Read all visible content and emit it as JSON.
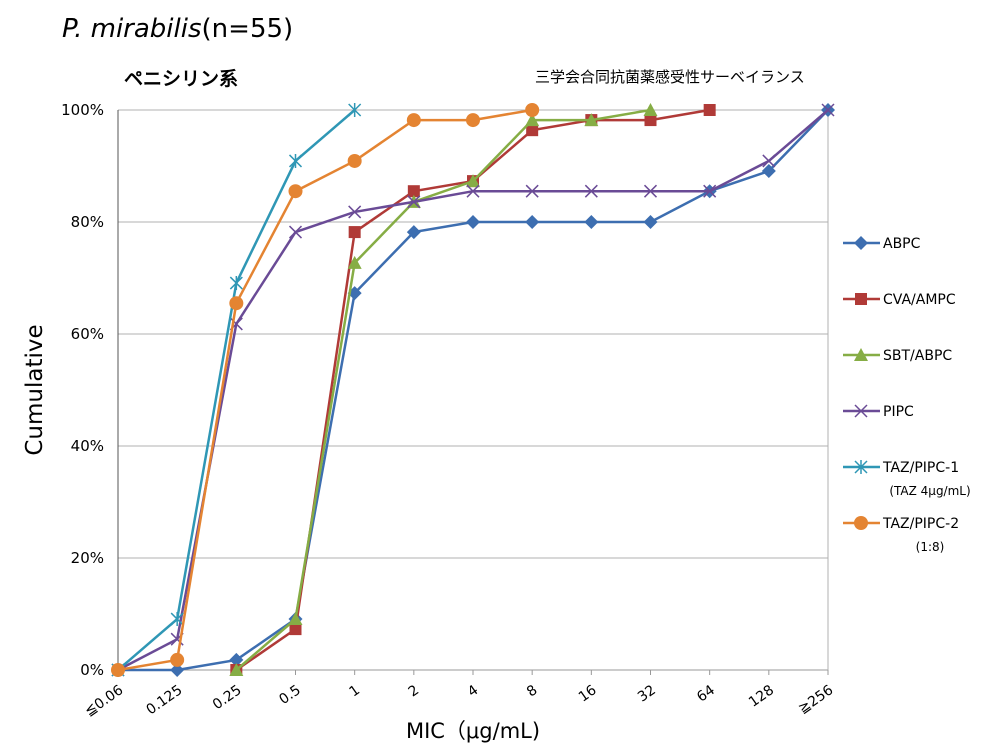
{
  "header": {
    "organism": "P. mirabilis",
    "n_label": "(n=55)",
    "subtitle": "ペニシリン系",
    "source": "三学会合同抗菌薬感受性サーベイランス"
  },
  "chart_data": {
    "type": "line",
    "title": "P. mirabilis(n=55)",
    "xlabel": "MIC（μg/mL)",
    "ylabel": "Cumulative",
    "categories": [
      "≦0.06",
      "0.125",
      "0.25",
      "0.5",
      "1",
      "2",
      "4",
      "8",
      "16",
      "32",
      "64",
      "128",
      "≧256"
    ],
    "ylim": [
      0,
      100
    ],
    "yticks": [
      "0%",
      "20%",
      "40%",
      "60%",
      "80%",
      "100%"
    ],
    "ytick_values": [
      0,
      20,
      40,
      60,
      80,
      100
    ],
    "grid": true,
    "legend_placement": "right",
    "series": [
      {
        "name": "ABPC",
        "sub": "",
        "color": "#3d6eb0",
        "marker": "diamond",
        "values": [
          0,
          0,
          1.8,
          9.1,
          67.3,
          78.2,
          80,
          80,
          80,
          80,
          85.5,
          89.1,
          100
        ]
      },
      {
        "name": "CVA/AMPC",
        "sub": "",
        "color": "#b03a37",
        "marker": "square",
        "values": [
          null,
          null,
          0,
          7.3,
          78.2,
          85.5,
          87.3,
          96.4,
          98.2,
          98.2,
          100,
          null,
          null
        ]
      },
      {
        "name": "SBT/ABPC",
        "sub": "",
        "color": "#86ad45",
        "marker": "triangle",
        "values": [
          null,
          null,
          0,
          9.1,
          72.7,
          83.6,
          87.3,
          98.2,
          98.2,
          100,
          null,
          null,
          null
        ]
      },
      {
        "name": "PIPC",
        "sub": "",
        "color": "#6a4b96",
        "marker": "x",
        "values": [
          0,
          5.5,
          61.8,
          78.2,
          81.8,
          83.6,
          85.5,
          85.5,
          85.5,
          85.5,
          85.5,
          90.9,
          100
        ]
      },
      {
        "name": "TAZ/PIPC-1",
        "sub": "(TAZ 4μg/mL)",
        "color": "#2f97b5",
        "marker": "star",
        "values": [
          0,
          9.1,
          69.1,
          90.9,
          100,
          null,
          null,
          null,
          null,
          null,
          null,
          null,
          null
        ]
      },
      {
        "name": "TAZ/PIPC-2",
        "sub": "(1:8)",
        "color": "#e48432",
        "marker": "circle",
        "values": [
          0,
          1.8,
          65.5,
          85.5,
          90.9,
          98.2,
          98.2,
          100,
          null,
          null,
          null,
          null,
          null
        ]
      }
    ]
  }
}
